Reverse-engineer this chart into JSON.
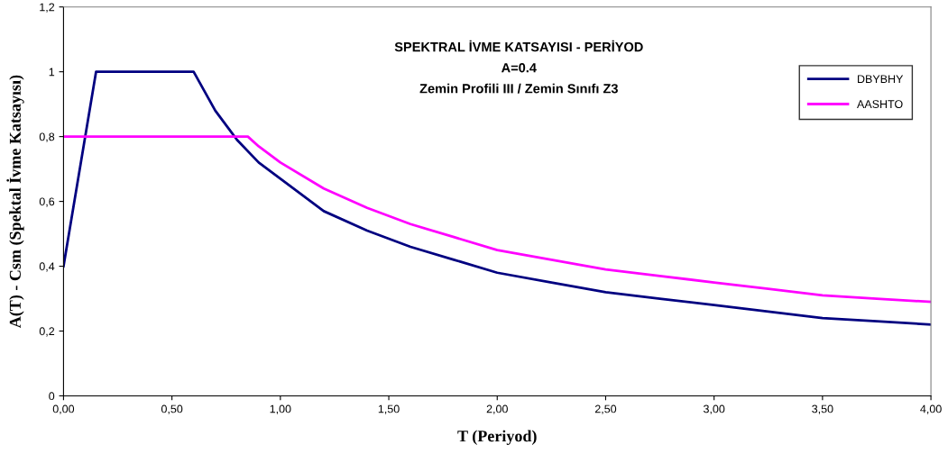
{
  "chart_data": {
    "type": "line",
    "title": "SPEKTRAL İVME KATSAYISI - PERİYOD\nA=0.4\nZemin Profili III / Zemin Sınıfı Z3",
    "xlabel": "T (Periyod)",
    "ylabel": "A(T) - Csm (Spektal İvme Katsayısı)",
    "xlim": [
      0,
      4
    ],
    "xticks": [
      {
        "value": 0,
        "label": "0,00"
      },
      {
        "value": 0.5,
        "label": "0,50"
      },
      {
        "value": 1,
        "label": "1,00"
      },
      {
        "value": 1.5,
        "label": "1,50"
      },
      {
        "value": 2,
        "label": "2,00"
      },
      {
        "value": 2.5,
        "label": "2,50"
      },
      {
        "value": 3,
        "label": "3,00"
      },
      {
        "value": 3.5,
        "label": "3,50"
      },
      {
        "value": 4,
        "label": "4,00"
      }
    ],
    "ylim": [
      0,
      1.2
    ],
    "yticks": [
      0,
      {
        "value": 0.2,
        "label": "0,2"
      },
      {
        "value": 0.4,
        "label": "0,4"
      },
      {
        "value": 0.6,
        "label": "0,6"
      },
      {
        "value": 0.8,
        "label": "0,8"
      },
      1,
      {
        "value": 1.2,
        "label": "1,2"
      }
    ],
    "grid": false,
    "legend": "right",
    "marker": "none",
    "line_style": "solid",
    "series": [
      {
        "name": "DBYBHY",
        "color": "#000080",
        "x": [
          0,
          0.15,
          0.6,
          0.7,
          0.8,
          0.9,
          1.0,
          1.2,
          1.4,
          1.6,
          1.8,
          2.0,
          2.25,
          2.5,
          2.75,
          3.0,
          3.25,
          3.5,
          3.75,
          4.0
        ],
        "values": [
          0.4,
          1,
          1,
          0.88,
          0.79,
          0.72,
          0.67,
          0.57,
          0.51,
          0.46,
          0.42,
          0.38,
          0.35,
          0.32,
          0.3,
          0.28,
          0.26,
          0.24,
          0.23,
          0.22
        ]
      },
      {
        "name": "AASHTO",
        "color": "#ff00ff",
        "x": [
          0,
          0.85,
          0.9,
          1.0,
          1.2,
          1.4,
          1.6,
          1.8,
          2.0,
          2.25,
          2.5,
          2.75,
          3.0,
          3.25,
          3.5,
          3.75,
          4.0
        ],
        "values": [
          0.8,
          0.8,
          0.77,
          0.72,
          0.64,
          0.58,
          0.53,
          0.49,
          0.45,
          0.42,
          0.39,
          0.37,
          0.35,
          0.33,
          0.31,
          0.3,
          0.29
        ]
      }
    ]
  }
}
